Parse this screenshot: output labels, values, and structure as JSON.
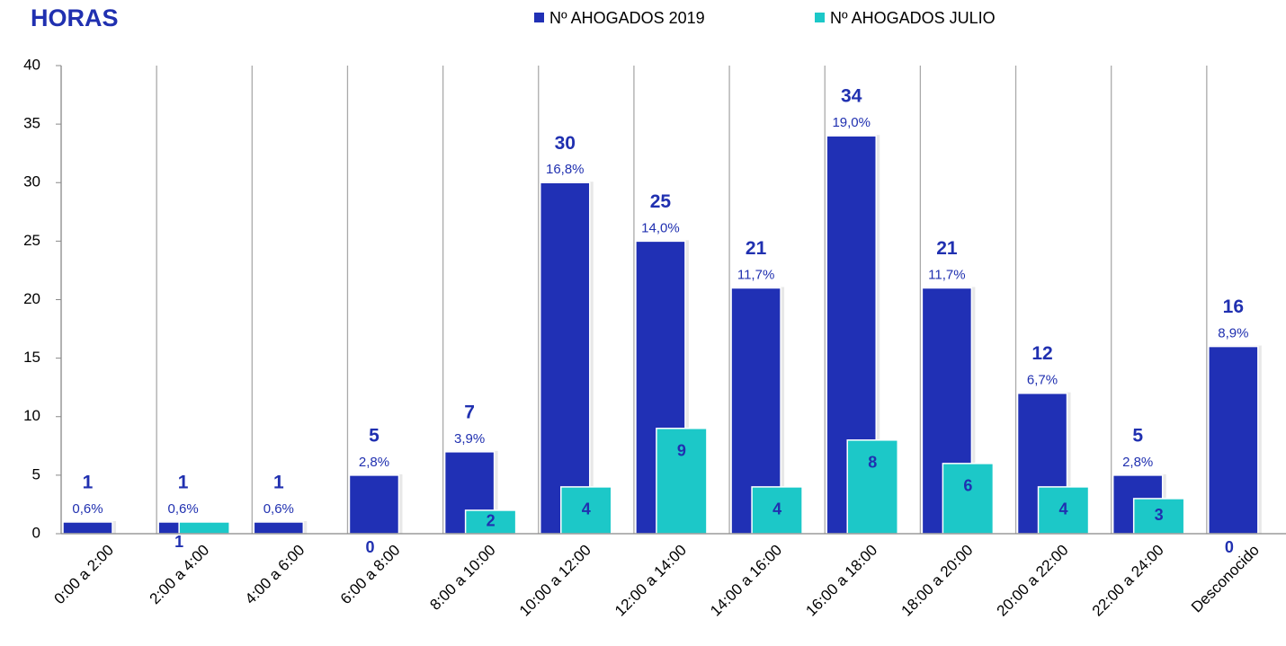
{
  "chart_data": {
    "type": "bar",
    "title": "HORAS",
    "categories": [
      "0:00 a 2:00",
      "2:00 a 4:00",
      "4:00 a 6:00",
      "6:00 a 8:00",
      "8:00 a 10:00",
      "10:00 a 12:00",
      "12:00 a 14:00",
      "14:00 a 16:00",
      "16:00 a 18:00",
      "18:00 a 20:00",
      "20:00 a 22:00",
      "22:00 a 24:00",
      "Desconocido"
    ],
    "series": [
      {
        "name": "Nº AHOGADOS 2019",
        "color": "#2030b5",
        "values": [
          1,
          1,
          1,
          5,
          7,
          30,
          25,
          21,
          34,
          21,
          12,
          5,
          16
        ],
        "percent_labels": [
          "0,6%",
          "0,6%",
          "0,6%",
          "2,8%",
          "3,9%",
          "16,8%",
          "14,0%",
          "11,7%",
          "19,0%",
          "11,7%",
          "6,7%",
          "2,8%",
          "8,9%"
        ]
      },
      {
        "name": "Nº AHOGADOS JULIO",
        "color": "#1cc8c8",
        "values": [
          null,
          1,
          null,
          0,
          2,
          4,
          9,
          4,
          8,
          6,
          4,
          3,
          0
        ]
      }
    ],
    "ylim": [
      0,
      40
    ],
    "yticks": [
      0,
      5,
      10,
      15,
      20,
      25,
      30,
      35,
      40
    ],
    "grid": true,
    "legend": "top"
  }
}
